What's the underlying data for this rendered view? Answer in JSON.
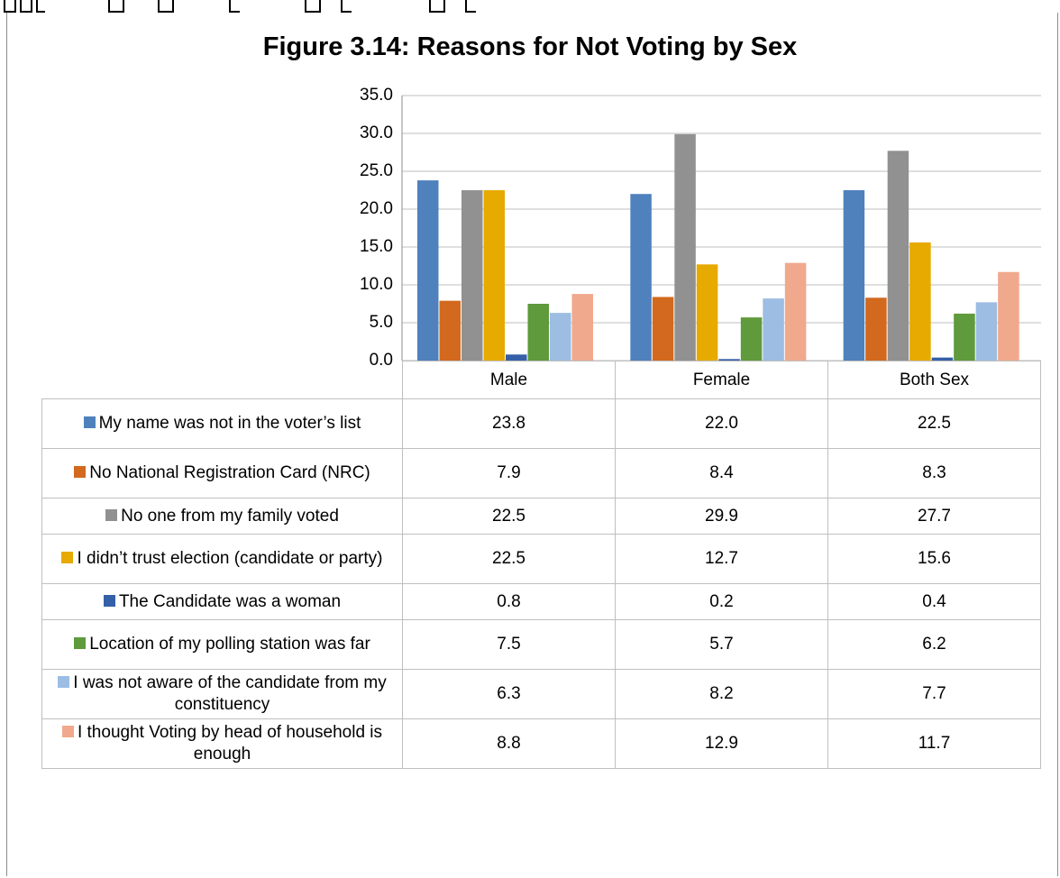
{
  "chart_data": {
    "type": "bar",
    "title": "Figure 3.14: Reasons for Not Voting by Sex",
    "categories": [
      "Male",
      "Female",
      "Both Sex"
    ],
    "ylim": [
      0,
      35
    ],
    "yticks": [
      "35.0",
      "30.0",
      "25.0",
      "20.0",
      "15.0",
      "10.0",
      "5.0",
      "0.0"
    ],
    "grid": true,
    "legend": "data-table",
    "series": [
      {
        "name": "My name was not in the voter’s list",
        "color": "#4f81bd",
        "values": [
          23.8,
          22.0,
          22.5
        ],
        "labels": [
          "23.8",
          "22.0",
          "22.5"
        ]
      },
      {
        "name": "No National Registration Card (NRC)",
        "color": "#d2691e",
        "values": [
          7.9,
          8.4,
          8.3
        ],
        "labels": [
          "7.9",
          "8.4",
          "8.3"
        ]
      },
      {
        "name": "No one from my family voted",
        "color": "#919191",
        "values": [
          22.5,
          29.9,
          27.7
        ],
        "labels": [
          "22.5",
          "29.9",
          "27.7"
        ]
      },
      {
        "name": "I didn’t trust election (candidate or party)",
        "color": "#e6aa00",
        "values": [
          22.5,
          12.7,
          15.6
        ],
        "labels": [
          "22.5",
          "12.7",
          "15.6"
        ]
      },
      {
        "name": "The Candidate was a woman",
        "color": "#3560a8",
        "values": [
          0.8,
          0.2,
          0.4
        ],
        "labels": [
          "0.8",
          "0.2",
          "0.4"
        ]
      },
      {
        "name": "Location of my polling station was far",
        "color": "#5f9a3c",
        "values": [
          7.5,
          5.7,
          6.2
        ],
        "labels": [
          "7.5",
          "5.7",
          "6.2"
        ]
      },
      {
        "name": "I was not aware of the candidate from my constituency",
        "color": "#9dbde3",
        "values": [
          6.3,
          8.2,
          7.7
        ],
        "labels": [
          "6.3",
          "8.2",
          "7.7"
        ]
      },
      {
        "name": "I thought Voting by head of household is enough",
        "color": "#f0a98c",
        "values": [
          8.8,
          12.9,
          11.7
        ],
        "labels": [
          "8.8",
          "12.9",
          "11.7"
        ]
      }
    ]
  }
}
